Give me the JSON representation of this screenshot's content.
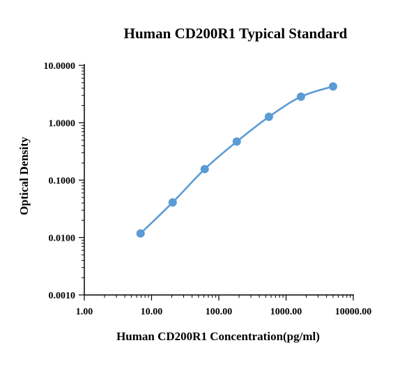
{
  "chart_data": {
    "type": "scatter",
    "title": "Human CD200R1 Typical Standard",
    "xlabel": "Human CD200R1 Concentration(pg/ml)",
    "ylabel": "Optical Density",
    "x_scale": "log",
    "y_scale": "log",
    "xlim": [
      1,
      10000
    ],
    "ylim": [
      0.001,
      10
    ],
    "x_tick_labels": [
      "1.00",
      "10.00",
      "100.00",
      "1000.00",
      "10000.00"
    ],
    "y_tick_labels": [
      "0.0010",
      "0.0100",
      "0.1000",
      "1.0000",
      "10.0000"
    ],
    "grid": false,
    "legend": "none",
    "series_color": "#5b9bd5",
    "series": [
      {
        "x": [
          6.86,
          20.6,
          61.7,
          185,
          556,
          1667,
          5000
        ],
        "y": [
          0.0118,
          0.041,
          0.156,
          0.47,
          1.27,
          2.85,
          4.3
        ]
      }
    ]
  }
}
